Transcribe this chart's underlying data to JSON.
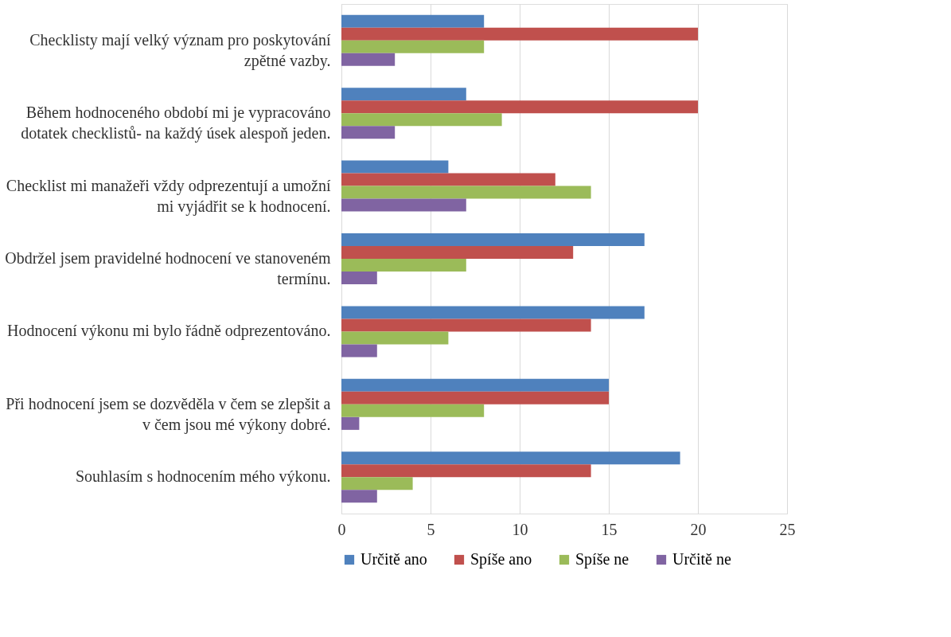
{
  "chart_data": {
    "type": "bar",
    "orientation": "horizontal",
    "categories": [
      "Checklisty mají velký význam pro poskytování\nzpětné vazby.",
      "Během hodnoceného období mi je vypracováno\ndotatek checklistů- na každý úsek alespoň jeden.",
      "Checklist mi manažeři vždy odprezentují a umožní\nmi vyjádřit se k hodnocení.",
      "Obdržel jsem pravidelné hodnocení ve stanoveném\ntermínu.",
      "Hodnocení výkonu mi bylo řádně odprezentováno.",
      "Při hodnocení jsem se dozvěděla v čem se zlepšit a\nv čem jsou mé výkony dobré.",
      "Souhlasím s hodnocením mého výkonu."
    ],
    "series": [
      {
        "name": "Určitě ano",
        "color": "#4f81bd",
        "values": [
          8,
          7,
          6,
          17,
          17,
          15,
          19
        ]
      },
      {
        "name": "Spíše ano",
        "color": "#c0504d",
        "values": [
          20,
          20,
          12,
          13,
          14,
          15,
          14
        ]
      },
      {
        "name": "Spíše ne",
        "color": "#9bbb59",
        "values": [
          8,
          9,
          14,
          7,
          6,
          8,
          4
        ]
      },
      {
        "name": "Určitě ne",
        "color": "#8064a2",
        "values": [
          3,
          3,
          7,
          2,
          2,
          1,
          2
        ]
      }
    ],
    "xlim": [
      0,
      25
    ],
    "xticks": [
      0,
      5,
      10,
      15,
      20,
      25
    ],
    "grid": "x",
    "legend": "bottom"
  }
}
